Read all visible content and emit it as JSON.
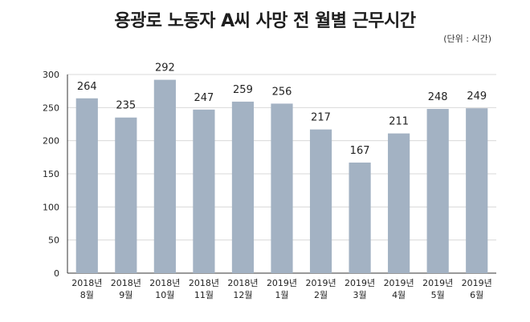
{
  "title": "용광로 노동자 A씨 사망 전 월별 근무시간",
  "unit_note": "(단위 : 시간)",
  "chart_data": {
    "type": "bar",
    "title": "용광로 노동자 A씨 사망 전 월별 근무시간",
    "unit": "(단위 : 시간)",
    "categories": [
      [
        "2018년",
        "8월"
      ],
      [
        "2018년",
        "9월"
      ],
      [
        "2018년",
        "10월"
      ],
      [
        "2018년",
        "11월"
      ],
      [
        "2018년",
        "12월"
      ],
      [
        "2019년",
        "1월"
      ],
      [
        "2019년",
        "2월"
      ],
      [
        "2019년",
        "3월"
      ],
      [
        "2019년",
        "4월"
      ],
      [
        "2019년",
        "5월"
      ],
      [
        "2019년",
        "6월"
      ]
    ],
    "values": [
      264,
      235,
      292,
      247,
      259,
      256,
      217,
      167,
      211,
      248,
      249
    ],
    "ylim": [
      0,
      300
    ],
    "yticks": [
      0,
      50,
      100,
      150,
      200,
      250,
      300
    ],
    "grid": true,
    "colors": {
      "bar": "#a3b2c3",
      "grid": "#d9d9d9",
      "axis": "#333333"
    }
  }
}
